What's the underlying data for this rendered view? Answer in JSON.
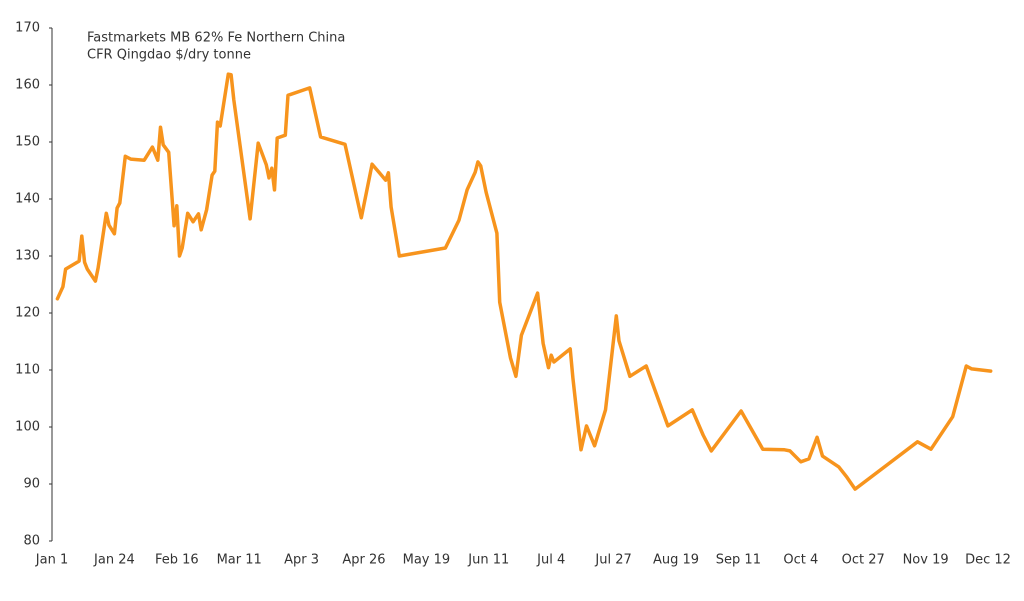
{
  "chart_data": {
    "type": "line",
    "annotation": [
      "Fastmarkets MB 62% Fe Northern China",
      "CFR Qingdao $/dry tonne"
    ],
    "color": "#f7941d",
    "x": [
      2,
      4,
      5,
      10,
      11,
      12,
      13,
      16,
      17,
      20,
      21,
      23,
      24,
      25,
      27,
      29,
      34,
      37,
      39,
      40,
      41,
      43,
      45,
      46,
      47,
      48,
      50,
      52,
      54,
      55,
      57,
      59,
      60,
      61,
      62,
      65,
      66,
      67,
      73,
      76,
      79,
      80,
      81,
      82,
      83,
      86,
      87,
      95,
      99,
      108,
      114,
      118,
      123,
      124,
      125,
      128,
      145,
      150,
      153,
      156,
      157,
      158,
      160,
      164,
      165,
      169,
      171,
      173,
      179,
      181,
      183,
      184,
      185,
      191,
      192,
      194,
      195,
      197,
      200,
      204,
      208,
      209,
      213,
      219,
      227,
      236,
      240,
      243,
      254,
      262,
      270,
      272,
      276,
      279,
      282,
      284,
      290,
      293,
      296,
      319,
      324,
      332,
      337,
      339,
      346
    ],
    "values": [
      122.5,
      124.6,
      127.7,
      129.1,
      133.5,
      128.9,
      127.7,
      125.6,
      127.9,
      137.5,
      135.4,
      133.9,
      138.4,
      139.3,
      147.5,
      147.0,
      146.8,
      149.1,
      146.8,
      152.6,
      149.5,
      148.2,
      135.3,
      138.8,
      130.0,
      131.4,
      137.5,
      136.0,
      137.4,
      134.6,
      138.1,
      144.2,
      144.9,
      153.5,
      152.8,
      161.9,
      161.8,
      157.4,
      136.5,
      149.8,
      146.0,
      143.7,
      145.4,
      141.6,
      150.7,
      151.2,
      158.2,
      159.5,
      150.9,
      149.6,
      136.7,
      146.1,
      143.3,
      144.6,
      138.6,
      130.0,
      131.4,
      136.3,
      141.6,
      144.7,
      146.5,
      145.8,
      141.2,
      134.0,
      121.9,
      112.1,
      108.9,
      116.1,
      123.5,
      114.7,
      110.4,
      112.6,
      111.4,
      113.7,
      108.6,
      100.0,
      96.0,
      100.2,
      96.7,
      103.0,
      119.5,
      115.1,
      108.9,
      110.7,
      100.2,
      103.0,
      98.6,
      95.8,
      102.8,
      96.1,
      96.0,
      95.8,
      93.9,
      94.4,
      98.2,
      94.9,
      93.0,
      91.2,
      89.1,
      97.4,
      96.1,
      101.8,
      110.7,
      110.2,
      109.8
    ],
    "xlim": [
      0,
      345
    ],
    "xticks": [
      {
        "value": 0,
        "label": "Jan 1"
      },
      {
        "value": 23,
        "label": "Jan 24"
      },
      {
        "value": 46,
        "label": "Feb 16"
      },
      {
        "value": 69,
        "label": "Mar 11"
      },
      {
        "value": 92,
        "label": "Apr 3"
      },
      {
        "value": 115,
        "label": "Apr 26"
      },
      {
        "value": 138,
        "label": "May 19"
      },
      {
        "value": 161,
        "label": "Jun 11"
      },
      {
        "value": 184,
        "label": "Jul 4"
      },
      {
        "value": 207,
        "label": "Jul 27"
      },
      {
        "value": 230,
        "label": "Aug 19"
      },
      {
        "value": 253,
        "label": "Sep 11"
      },
      {
        "value": 276,
        "label": "Oct 4"
      },
      {
        "value": 299,
        "label": "Oct 27"
      },
      {
        "value": 322,
        "label": "Nov 19"
      },
      {
        "value": 345,
        "label": "Dec 12"
      }
    ],
    "ylim": [
      80,
      170
    ],
    "yticks": [
      80,
      90,
      100,
      110,
      120,
      130,
      140,
      150,
      160,
      170
    ],
    "grid": false
  }
}
